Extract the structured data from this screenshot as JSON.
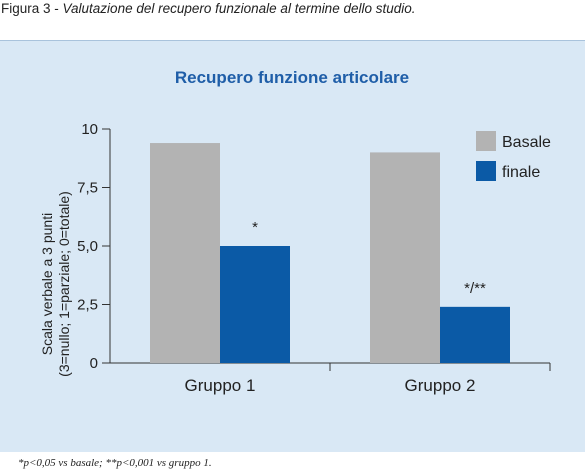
{
  "figure": {
    "caption_prefix": "Figura 3 - ",
    "caption_text": "Valutazione del recupero funzionale al termine dello studio.",
    "footnote": "*p<0,05 vs basale; **p<0,001 vs gruppo 1."
  },
  "colors": {
    "panel_bg": "#d9e8f5",
    "title": "#1f5ea8",
    "basale": "#b3b3b3",
    "finale": "#0b5aa6",
    "axis": "#333333"
  },
  "chart_data": {
    "type": "bar",
    "title": "Recupero funzione articolare",
    "ylabel_lines": [
      "Scala verbale a 3 punti",
      "(3=nullo; 1=parziale; 0=totale)"
    ],
    "xlabel": "",
    "categories": [
      "Gruppo 1",
      "Gruppo 2"
    ],
    "series": [
      {
        "name": "Basale",
        "values": [
          9.4,
          9.0
        ]
      },
      {
        "name": "finale",
        "values": [
          5.0,
          2.4
        ]
      }
    ],
    "ylim": [
      0,
      10
    ],
    "yticks": [
      0,
      2.5,
      5,
      7.5,
      10
    ],
    "ytick_labels": [
      "0",
      "2,5",
      "5,0",
      "7,5",
      "10"
    ],
    "annotations": [
      {
        "category": 0,
        "series": 1,
        "text": "*"
      },
      {
        "category": 1,
        "series": 1,
        "text": "*/**"
      }
    ],
    "legend_position": "top-right",
    "grid": false
  }
}
